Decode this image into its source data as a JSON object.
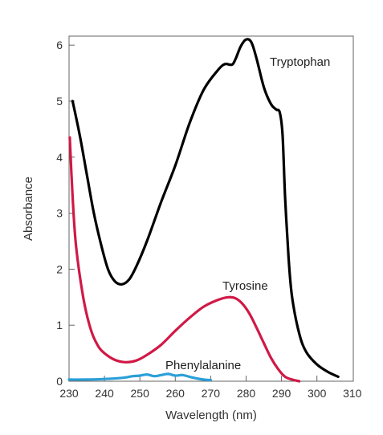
{
  "chart_data": {
    "type": "line",
    "xlabel": "Wavelength (nm)",
    "ylabel": "Absorbance",
    "xlim": [
      230,
      310
    ],
    "ylim": [
      0,
      6.2
    ],
    "xticks": [
      230,
      240,
      250,
      260,
      270,
      280,
      290,
      300,
      310
    ],
    "yticks": [
      0,
      1,
      2,
      3,
      4,
      5,
      6
    ],
    "grid": false,
    "legend": "none",
    "series": [
      {
        "name": "Tryptophan",
        "color": "#000000",
        "points": [
          [
            231,
            5.0
          ],
          [
            233,
            4.4
          ],
          [
            235,
            3.7
          ],
          [
            237,
            3.0
          ],
          [
            239,
            2.45
          ],
          [
            241,
            2.0
          ],
          [
            243,
            1.78
          ],
          [
            245,
            1.73
          ],
          [
            247,
            1.82
          ],
          [
            249,
            2.05
          ],
          [
            252,
            2.5
          ],
          [
            256,
            3.2
          ],
          [
            260,
            3.85
          ],
          [
            264,
            4.6
          ],
          [
            268,
            5.2
          ],
          [
            272,
            5.55
          ],
          [
            274,
            5.66
          ],
          [
            276,
            5.65
          ],
          [
            277,
            5.75
          ],
          [
            278.5,
            5.98
          ],
          [
            280,
            6.1
          ],
          [
            281.5,
            6.05
          ],
          [
            283,
            5.75
          ],
          [
            285,
            5.25
          ],
          [
            287,
            4.95
          ],
          [
            288.5,
            4.85
          ],
          [
            289.5,
            4.8
          ],
          [
            290.3,
            4.4
          ],
          [
            291,
            3.3
          ],
          [
            292,
            2.2
          ],
          [
            293,
            1.5
          ],
          [
            295,
            0.85
          ],
          [
            297,
            0.52
          ],
          [
            300,
            0.3
          ],
          [
            303,
            0.17
          ],
          [
            306,
            0.08
          ]
        ]
      },
      {
        "name": "Tyrosine",
        "color": "#d01946",
        "points": [
          [
            230.2,
            4.35
          ],
          [
            231,
            3.3
          ],
          [
            232,
            2.4
          ],
          [
            234,
            1.5
          ],
          [
            236,
            0.95
          ],
          [
            238,
            0.65
          ],
          [
            240,
            0.5
          ],
          [
            243,
            0.38
          ],
          [
            246,
            0.34
          ],
          [
            249,
            0.37
          ],
          [
            252,
            0.47
          ],
          [
            256,
            0.65
          ],
          [
            260,
            0.9
          ],
          [
            264,
            1.13
          ],
          [
            268,
            1.33
          ],
          [
            272,
            1.45
          ],
          [
            275,
            1.5
          ],
          [
            277,
            1.48
          ],
          [
            279,
            1.38
          ],
          [
            281,
            1.2
          ],
          [
            283,
            0.95
          ],
          [
            285,
            0.68
          ],
          [
            287,
            0.42
          ],
          [
            289,
            0.22
          ],
          [
            291,
            0.08
          ],
          [
            293,
            0.03
          ],
          [
            295,
            0.0
          ]
        ]
      },
      {
        "name": "Phenylalanine",
        "color": "#2a9fd8",
        "points": [
          [
            230,
            0.03
          ],
          [
            235,
            0.03
          ],
          [
            240,
            0.04
          ],
          [
            245,
            0.06
          ],
          [
            248,
            0.09
          ],
          [
            250,
            0.1
          ],
          [
            252,
            0.12
          ],
          [
            254,
            0.09
          ],
          [
            256,
            0.11
          ],
          [
            258,
            0.13
          ],
          [
            260,
            0.1
          ],
          [
            262,
            0.11
          ],
          [
            264,
            0.08
          ],
          [
            266,
            0.05
          ],
          [
            268,
            0.03
          ],
          [
            270,
            0.02
          ]
        ]
      }
    ]
  }
}
